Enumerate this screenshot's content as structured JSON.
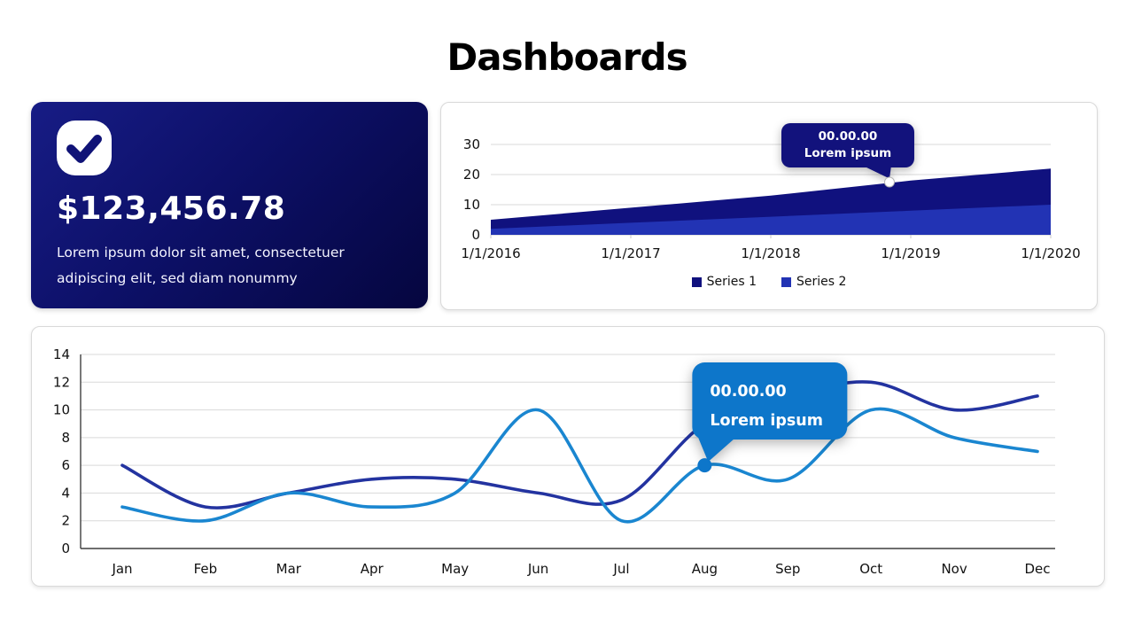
{
  "page": {
    "title": "Dashboards"
  },
  "kpi_card": {
    "amount": "$123,456.78",
    "description": "Lorem ipsum dolor sit amet, consectetuer adipiscing elit, sed diam nonummy",
    "icon": "check-icon",
    "bg_gradient_from": "#171c85",
    "bg_gradient_mid": "#0d1068",
    "bg_gradient_to": "#05063f",
    "icon_bg": "#ffffff",
    "icon_check_color": "#101377"
  },
  "chart_data": [
    {
      "type": "area",
      "title": "",
      "categories": [
        "1/1/2016",
        "1/1/2017",
        "1/1/2018",
        "1/1/2019",
        "1/1/2020"
      ],
      "series": [
        {
          "name": "Series 1",
          "color": "#10117e",
          "values": [
            5,
            9,
            13,
            18,
            22
          ]
        },
        {
          "name": "Series 2",
          "color": "#2233b4",
          "values": [
            2,
            4,
            6,
            8,
            10
          ]
        }
      ],
      "ylim": [
        0,
        30
      ],
      "yticks": [
        0,
        10,
        20,
        30
      ],
      "grid": true,
      "legend_position": "bottom",
      "tooltip": {
        "line1": "00.00.00",
        "line2": "Lorem ipsum",
        "bg": "#12127c",
        "anchor_frac": 0.712,
        "anchor_value": 17.5
      }
    },
    {
      "type": "line",
      "title": "",
      "categories": [
        "Jan",
        "Feb",
        "Mar",
        "Apr",
        "May",
        "Jun",
        "Jul",
        "Aug",
        "Sep",
        "Oct",
        "Nov",
        "Dec"
      ],
      "series": [
        {
          "name": "Series 1",
          "color": "#2333a0",
          "values": [
            6,
            3,
            4,
            5,
            5,
            4,
            3.5,
            9,
            11,
            12,
            10,
            11
          ]
        },
        {
          "name": "Series 2",
          "color": "#1a86d0",
          "values": [
            3,
            2,
            4,
            3,
            4,
            10,
            2,
            6,
            5,
            10,
            8,
            7
          ]
        }
      ],
      "ylim": [
        0,
        14
      ],
      "yticks": [
        0,
        2,
        4,
        6,
        8,
        10,
        12,
        14
      ],
      "grid": true,
      "legend_position": "none",
      "tooltip": {
        "line1": "00.00.00",
        "line2": "Lorem ipsum",
        "bg": "#0d76ca",
        "anchor_series": 1,
        "anchor_index": 7
      }
    }
  ]
}
